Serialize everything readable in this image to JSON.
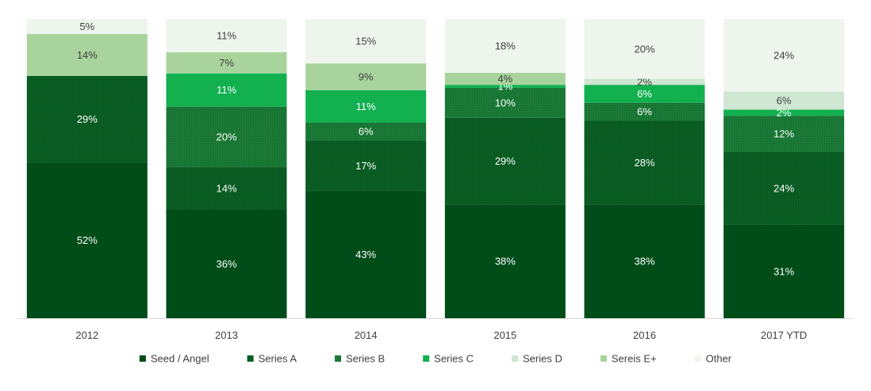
{
  "chart_data": {
    "type": "bar",
    "stacked": true,
    "normalized": true,
    "categories": [
      "2012",
      "2013",
      "2014",
      "2015",
      "2016",
      "2017 YTD"
    ],
    "series": [
      {
        "name": "Seed / Angel",
        "color": "#004d1a",
        "values": [
          52,
          36,
          43,
          38,
          38,
          31
        ],
        "labels": [
          "52%",
          "36%",
          "43%",
          "38%",
          "38%",
          "31%"
        ]
      },
      {
        "name": "Series A",
        "color": "#0a5e24",
        "values": [
          29,
          14,
          17,
          29,
          28,
          24
        ],
        "labels": [
          "29%",
          "14%",
          "17%",
          "29%",
          "28%",
          "24%"
        ]
      },
      {
        "name": "Series B",
        "color": "#1a7a36",
        "values": [
          0,
          20,
          6,
          10,
          6,
          12
        ],
        "labels": [
          "",
          "20%",
          "6%",
          "10%",
          "6%",
          "12%"
        ]
      },
      {
        "name": "Series C",
        "color": "#12b04f",
        "values": [
          0,
          11,
          11,
          1,
          6,
          2
        ],
        "labels": [
          "",
          "11%",
          "11%",
          "1%",
          "6%",
          "2%"
        ]
      },
      {
        "name": "Series D",
        "color": "#cfe6d2",
        "values": [
          0,
          0,
          0,
          0,
          2,
          6
        ],
        "labels": [
          "",
          "",
          "",
          "",
          "2%",
          "6%"
        ]
      },
      {
        "name": "Sereis E+",
        "color": "#a9d39d",
        "values": [
          14,
          7,
          9,
          4,
          0,
          0
        ],
        "labels": [
          "14%",
          "7%",
          "9%",
          "4%",
          "",
          ""
        ]
      },
      {
        "name": "Other",
        "color": "#eef5ec",
        "values": [
          5,
          11,
          15,
          18,
          20,
          24
        ],
        "labels": [
          "5%",
          "11%",
          "15%",
          "18%",
          "20%",
          "24%"
        ]
      }
    ],
    "ylim": [
      0,
      100
    ],
    "grid": false,
    "legend": "bottom"
  }
}
